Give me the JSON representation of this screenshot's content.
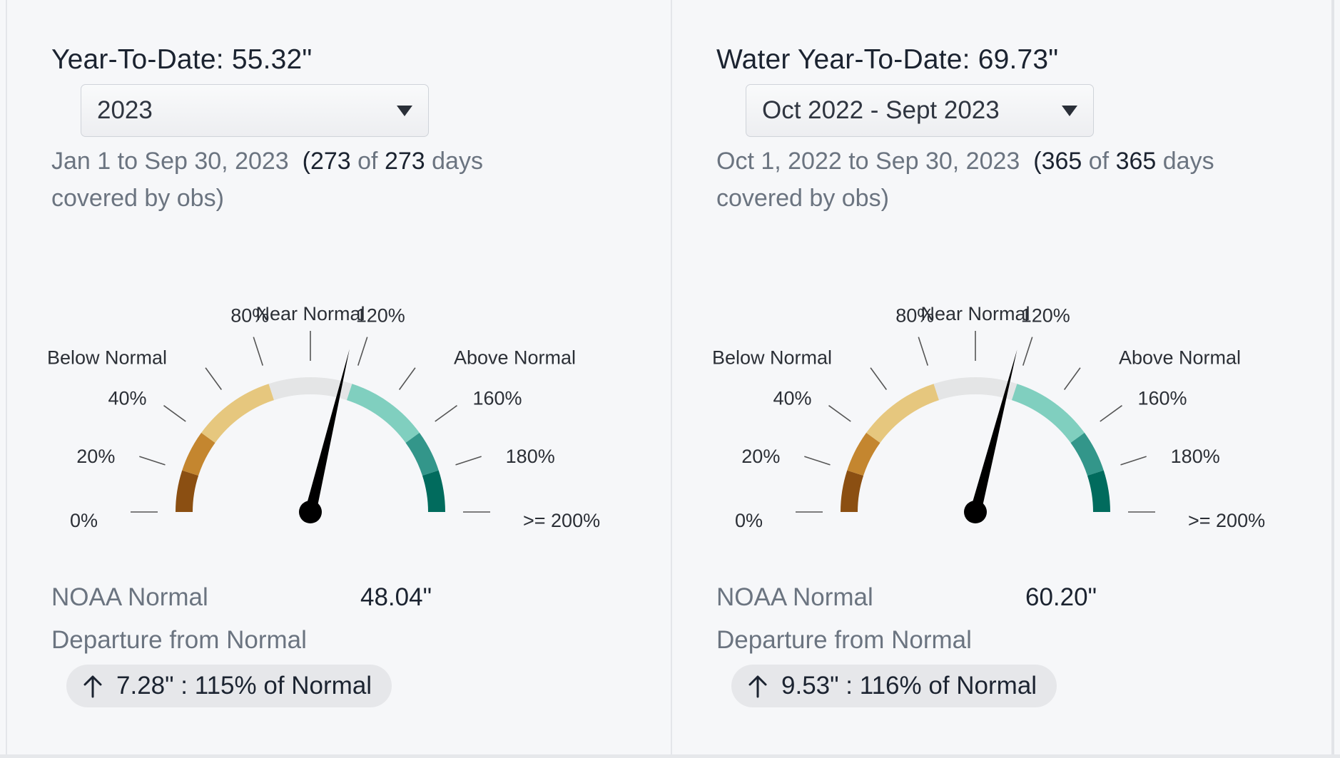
{
  "colors": {
    "below_dark": "#8b4f12",
    "below_mid": "#c4862f",
    "below_light": "#e6c77e",
    "near": "#e4e5e6",
    "above_light": "#80cfbf",
    "above_mid": "#33968a",
    "above_dark": "#016b5d",
    "needle": "#000000"
  },
  "panels": [
    {
      "title": "Year-To-Date: 55.32\"",
      "period_select": {
        "selected": "2023"
      },
      "coverage": {
        "range": "Jan 1 to Sep 30, 2023",
        "open": "(",
        "covered": "273",
        "of": "of",
        "total": "273",
        "days": "days",
        "suffix": "covered by obs)"
      },
      "gauge": {
        "percent_of_normal": 115,
        "tick_labels": [
          "0%",
          "20%",
          "40%",
          "80%",
          "120%",
          "160%",
          "180%",
          ">= 200%"
        ],
        "zone_labels": [
          "Below Normal",
          "Near Normal",
          "Above Normal"
        ]
      },
      "normal": {
        "label": "NOAA Normal",
        "value": "48.04\""
      },
      "departure": {
        "label": "Departure from Normal",
        "text": "7.28\" : 115% of Normal",
        "direction_icon": "arrow-up-icon"
      }
    },
    {
      "title": "Water Year-To-Date: 69.73\"",
      "period_select": {
        "selected": "Oct 2022 - Sept 2023"
      },
      "coverage": {
        "range": "Oct 1, 2022 to Sep 30, 2023",
        "open": "(",
        "covered": "365",
        "of": "of",
        "total": "365",
        "days": "days",
        "suffix": "covered by obs)"
      },
      "gauge": {
        "percent_of_normal": 116,
        "tick_labels": [
          "0%",
          "20%",
          "40%",
          "80%",
          "120%",
          "160%",
          "180%",
          ">= 200%"
        ],
        "zone_labels": [
          "Below Normal",
          "Near Normal",
          "Above Normal"
        ]
      },
      "normal": {
        "label": "NOAA Normal",
        "value": "60.20\""
      },
      "departure": {
        "label": "Departure from Normal",
        "text": "9.53\" : 116% of Normal",
        "direction_icon": "arrow-up-icon"
      }
    }
  ]
}
